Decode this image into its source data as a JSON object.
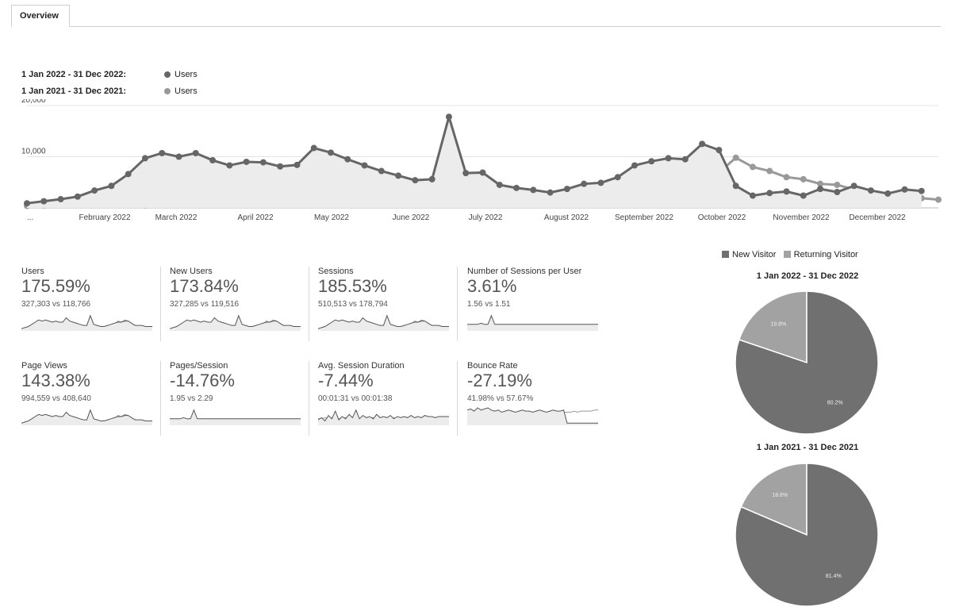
{
  "tabs": [
    {
      "label": "Overview"
    }
  ],
  "legend": {
    "current": {
      "range": "1 Jan 2022 - 31 Dec 2022:",
      "series": "Users",
      "color": "#666666"
    },
    "previous": {
      "range": "1 Jan 2021 - 31 Dec 2021:",
      "series": "Users",
      "color": "#999999"
    }
  },
  "chart_data": [
    {
      "type": "line",
      "title": "",
      "xlabel": "",
      "ylabel": "",
      "ylim": [
        0,
        20000
      ],
      "y_ticks": [
        "20,000",
        "10,000"
      ],
      "y_tick_values": [
        20000,
        10000
      ],
      "x_tick_labels": [
        "...",
        "February 2022",
        "March 2022",
        "April 2022",
        "May 2022",
        "June 2022",
        "July 2022",
        "August 2022",
        "September 2022",
        "October 2022",
        "November 2022",
        "December 2022"
      ],
      "grid": true,
      "series": [
        {
          "name": "1 Jan 2022 - 31 Dec 2022: Users",
          "color": "#666666",
          "values": [
            900,
            1300,
            1700,
            2200,
            3400,
            4300,
            6600,
            9700,
            10700,
            10000,
            10700,
            9300,
            8300,
            9000,
            8900,
            8100,
            8400,
            11700,
            10800,
            9500,
            8300,
            7200,
            6300,
            5400,
            5600,
            17800,
            6800,
            6900,
            4500,
            3900,
            3500,
            3000,
            3700,
            4700,
            4900,
            6000,
            8300,
            9100,
            9700,
            9500,
            12500,
            11300,
            4300,
            2400,
            2900,
            3200,
            2400,
            3700,
            3100,
            4300,
            3400,
            2800,
            3600,
            3300
          ]
        },
        {
          "name": "1 Jan 2021 - 31 Dec 2021: Users",
          "color": "#999999",
          "values": [
            400,
            500,
            600,
            800,
            900,
            1600,
            800,
            500,
            4200,
            800,
            800,
            900,
            1000,
            800,
            3300,
            1000,
            1000,
            1100,
            1000,
            900,
            900,
            1000,
            1000,
            1100,
            1300,
            1500,
            1600,
            1700,
            1700,
            1700,
            1900,
            2100,
            2100,
            2300,
            2700,
            2800,
            2700,
            2700,
            2700,
            6500,
            5800,
            6900,
            9800,
            8000,
            7200,
            6000,
            5600,
            4700,
            4500,
            3600,
            3200,
            2800,
            2900,
            1900,
            1600
          ]
        }
      ]
    },
    {
      "type": "pie",
      "title": "1 Jan 2022 - 31 Dec 2022",
      "labels": [
        "New Visitor",
        "Returning Visitor"
      ],
      "values": [
        80.2,
        19.8
      ],
      "value_labels": [
        "80.2%",
        "19.8%"
      ],
      "colors": [
        "#707070",
        "#a2a2a2"
      ]
    },
    {
      "type": "pie",
      "title": "1 Jan 2021 - 31 Dec 2021",
      "labels": [
        "New Visitor",
        "Returning Visitor"
      ],
      "values": [
        81.4,
        18.6
      ],
      "value_labels": [
        "81.4%",
        "18.6%"
      ],
      "colors": [
        "#707070",
        "#a2a2a2"
      ]
    }
  ],
  "pie_legend": {
    "new": "New Visitor",
    "returning": "Returning Visitor"
  },
  "metrics": [
    {
      "label": "Users",
      "value": "175.59%",
      "compare": "327,303 vs 118,766",
      "spark": "users"
    },
    {
      "label": "New Users",
      "value": "173.84%",
      "compare": "327,285 vs 119,516",
      "spark": "users"
    },
    {
      "label": "Sessions",
      "value": "185.53%",
      "compare": "510,513 vs 178,794",
      "spark": "users"
    },
    {
      "label": "Number of Sessions per User",
      "value": "3.61%",
      "compare": "1.56 vs 1.51",
      "spark": "flat"
    },
    {
      "label": "Page Views",
      "value": "143.38%",
      "compare": "994,559 vs 408,640",
      "spark": "users"
    },
    {
      "label": "Pages/Session",
      "value": "-14.76%",
      "compare": "1.95 vs 2.29",
      "spark": "flat"
    },
    {
      "label": "Avg. Session Duration",
      "value": "-7.44%",
      "compare": "00:01:31 vs 00:01:38",
      "spark": "noisy"
    },
    {
      "label": "Bounce Rate",
      "value": "-27.19%",
      "compare": "41.98% vs 57.67%",
      "spark": "bounce"
    }
  ]
}
